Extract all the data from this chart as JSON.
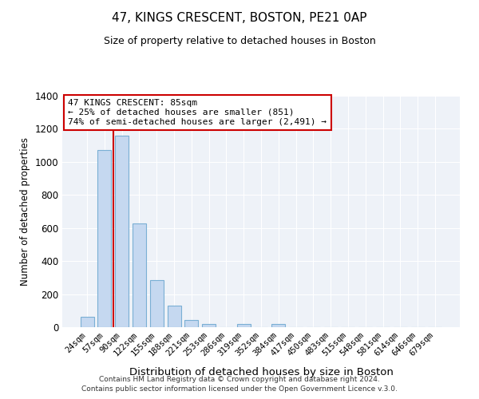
{
  "title": "47, KINGS CRESCENT, BOSTON, PE21 0AP",
  "subtitle": "Size of property relative to detached houses in Boston",
  "xlabel": "Distribution of detached houses by size in Boston",
  "ylabel": "Number of detached properties",
  "bar_labels": [
    "24sqm",
    "57sqm",
    "90sqm",
    "122sqm",
    "155sqm",
    "188sqm",
    "221sqm",
    "253sqm",
    "286sqm",
    "319sqm",
    "352sqm",
    "384sqm",
    "417sqm",
    "450sqm",
    "483sqm",
    "515sqm",
    "548sqm",
    "581sqm",
    "614sqm",
    "646sqm",
    "679sqm"
  ],
  "bar_values": [
    65,
    1070,
    1160,
    630,
    285,
    130,
    45,
    20,
    0,
    20,
    0,
    20,
    0,
    0,
    0,
    0,
    0,
    0,
    0,
    0,
    0
  ],
  "bar_color": "#c5d8f0",
  "bar_edgecolor": "#7aafd4",
  "ylim": [
    0,
    1400
  ],
  "yticks": [
    0,
    200,
    400,
    600,
    800,
    1000,
    1200,
    1400
  ],
  "property_line_color": "#cc0000",
  "annotation_title": "47 KINGS CRESCENT: 85sqm",
  "annotation_line1": "← 25% of detached houses are smaller (851)",
  "annotation_line2": "74% of semi-detached houses are larger (2,491) →",
  "annotation_box_color": "#cc0000",
  "footnote1": "Contains HM Land Registry data © Crown copyright and database right 2024.",
  "footnote2": "Contains public sector information licensed under the Open Government Licence v.3.0.",
  "background_color": "#eef2f8",
  "fig_background": "#ffffff",
  "grid_color": "#ffffff"
}
